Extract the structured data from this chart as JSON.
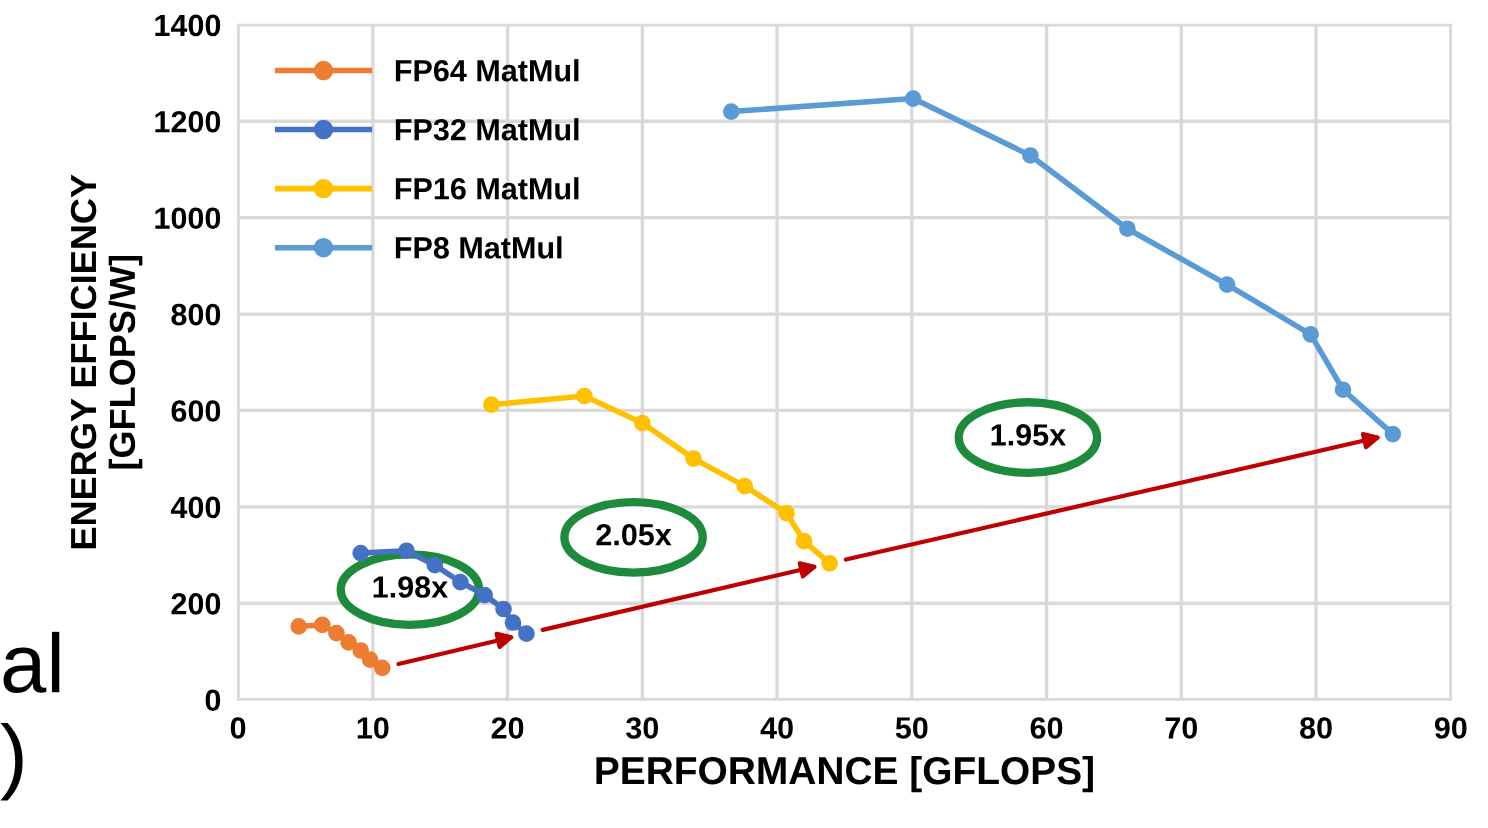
{
  "chart_data": {
    "type": "line",
    "xlabel": "PERFORMANCE [GFLOPS]",
    "ylabel": "ENERGY EFFICIENCY\n[GFLOPS/W]",
    "xlim": [
      0,
      90
    ],
    "xticks": [
      0,
      10,
      20,
      30,
      40,
      50,
      60,
      70,
      80,
      90
    ],
    "ylim": [
      0,
      1400
    ],
    "yticks": [
      0,
      200,
      400,
      600,
      800,
      1000,
      1200,
      1400
    ],
    "grid": true,
    "legend": "top left",
    "marker": "circle",
    "line_style": "solid",
    "series": [
      {
        "name": "FP64 MatMul",
        "color": "#ed7d31",
        "x": [
          4.5,
          6.25,
          7.3,
          8.2,
          9.1,
          9.8,
          10.7
        ],
        "values": [
          152,
          155,
          138,
          119,
          102,
          83,
          66
        ]
      },
      {
        "name": "FP32 MatMul",
        "color": "#4472c4",
        "x": [
          9.1,
          12.5,
          14.6,
          16.5,
          18.3,
          19.7,
          20.4,
          21.4
        ],
        "values": [
          304,
          309,
          279,
          244,
          217,
          188,
          160,
          137
        ]
      },
      {
        "name": "FP16 MatMul",
        "color": "#ffc000",
        "x": [
          18.8,
          25.7,
          30.0,
          33.8,
          37.6,
          40.7,
          42.0,
          43.9
        ],
        "values": [
          612,
          630,
          574,
          500,
          443,
          387,
          329,
          283
        ]
      },
      {
        "name": "FP8 MatMul",
        "color": "#5b9bd5",
        "x": [
          36.6,
          50.1,
          58.8,
          66.0,
          73.4,
          79.6,
          82.0,
          85.7
        ],
        "values": [
          1220,
          1247,
          1129,
          977,
          861,
          758,
          643,
          551
        ]
      }
    ],
    "annotations": [
      "1.98x",
      "2.05x",
      "1.95x",
      "al",
      ")"
    ]
  }
}
